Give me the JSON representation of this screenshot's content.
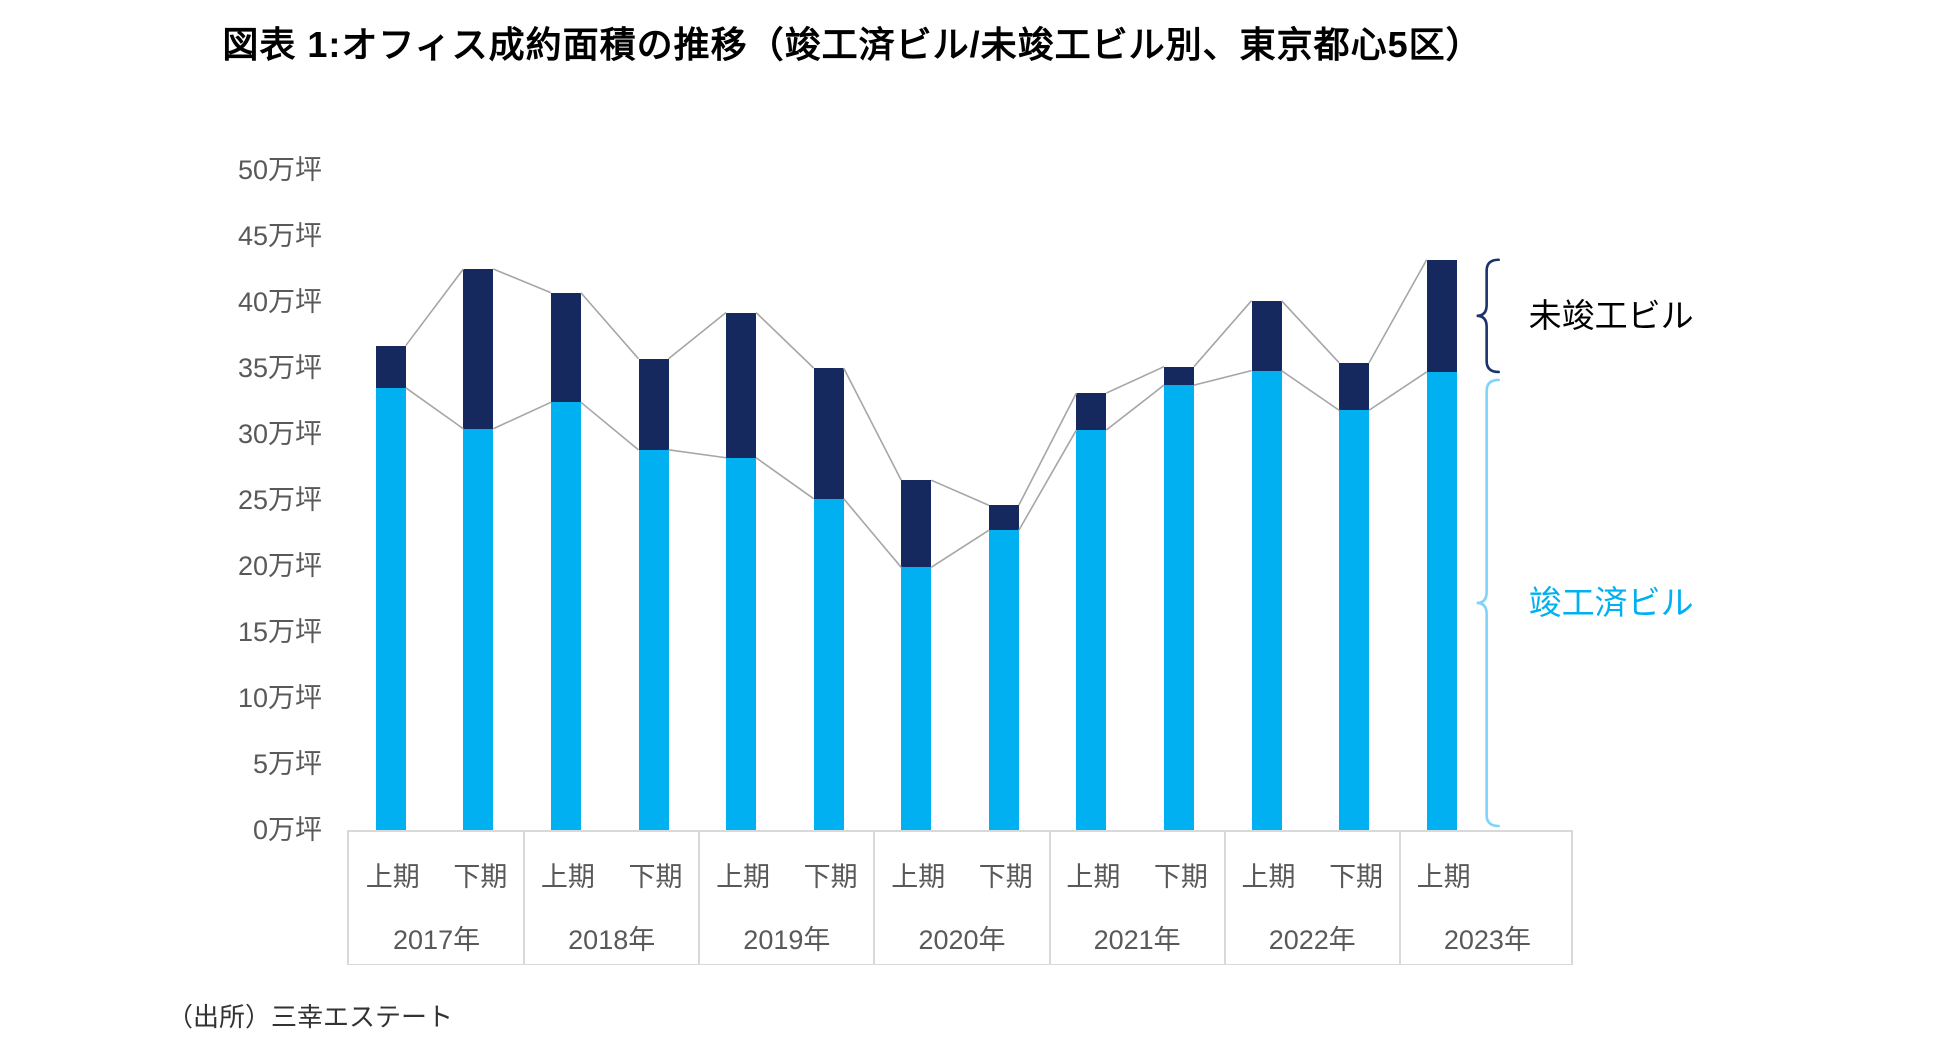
{
  "title": "図表 1:オフィス成約面積の推移（竣工済ビル/未竣工ビル別、東京都心5区）",
  "source": "（出所）三幸エステート",
  "annotations": {
    "incomplete_label": "未竣工ビル",
    "completed_label": "竣工済ビル"
  },
  "colors": {
    "completed": "#00B0F0",
    "incomplete": "#16295F",
    "incomplete_brace": "#1B3368",
    "completed_brace": "#7FD4F7",
    "series_line": "#A6A6A6",
    "axis_text": "#595959",
    "band_border": "#D9D9D9",
    "title_text": "#000000",
    "source_text": "#333333"
  },
  "y_axis": {
    "unit": "万坪",
    "min": 0,
    "max": 50,
    "step": 5,
    "ticks": [
      "0万坪",
      "5万坪",
      "10万坪",
      "15万坪",
      "20万坪",
      "25万坪",
      "30万坪",
      "35万坪",
      "40万坪",
      "45万坪",
      "50万坪"
    ]
  },
  "chart_data": {
    "type": "bar",
    "stacked": true,
    "series_lines": true,
    "grid": false,
    "legend_position": "right-braces",
    "ylim": [
      0,
      50
    ],
    "groups": [
      {
        "year": "2017年",
        "periods": [
          "上期",
          "下期"
        ]
      },
      {
        "year": "2018年",
        "periods": [
          "上期",
          "下期"
        ]
      },
      {
        "year": "2019年",
        "periods": [
          "上期",
          "下期"
        ]
      },
      {
        "year": "2020年",
        "periods": [
          "上期",
          "下期"
        ]
      },
      {
        "year": "2021年",
        "periods": [
          "上期",
          "下期"
        ]
      },
      {
        "year": "2022年",
        "periods": [
          "上期",
          "下期"
        ]
      },
      {
        "year": "2023年",
        "periods": [
          "上期"
        ]
      }
    ],
    "categories": [
      "2017年上期",
      "2017年下期",
      "2018年上期",
      "2018年下期",
      "2019年上期",
      "2019年下期",
      "2020年上期",
      "2020年下期",
      "2021年上期",
      "2021年下期",
      "2022年上期",
      "2022年下期",
      "2023年上期"
    ],
    "series": [
      {
        "name": "竣工済ビル",
        "color": "#00B0F0",
        "values": [
          33.5,
          30.4,
          32.4,
          28.8,
          28.2,
          25.1,
          19.9,
          22.7,
          30.3,
          33.7,
          34.8,
          31.8,
          34.7
        ]
      },
      {
        "name": "未竣工ビル",
        "color": "#16295F",
        "values": [
          3.2,
          12.1,
          8.3,
          6.9,
          11.0,
          9.9,
          6.6,
          1.9,
          2.8,
          1.4,
          5.3,
          3.6,
          8.5
        ]
      }
    ],
    "totals": [
      36.7,
      42.5,
      40.7,
      35.7,
      39.2,
      35.0,
      26.5,
      24.6,
      33.1,
      35.1,
      40.1,
      35.4,
      43.2
    ]
  }
}
